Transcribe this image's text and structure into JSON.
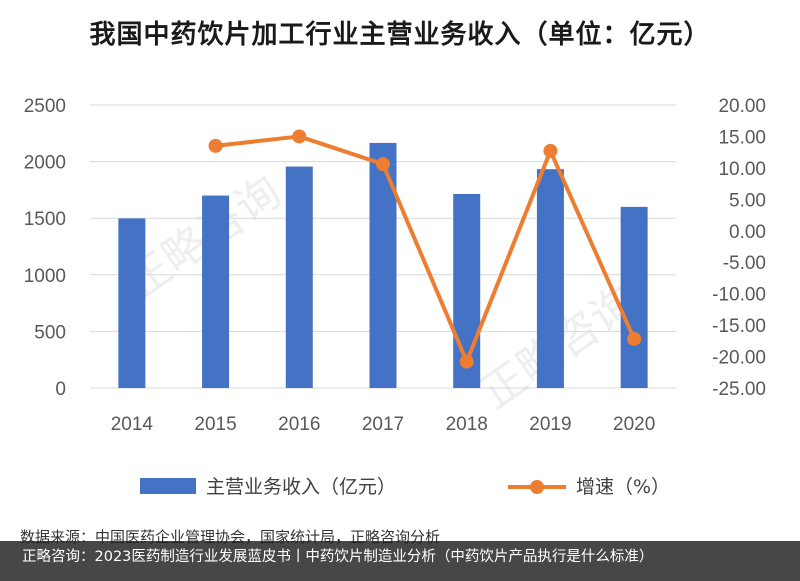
{
  "chart_data": {
    "type": "bar+line",
    "title": "我国中药饮片加工行业主营业务收入（单位：亿元）",
    "categories": [
      "2014",
      "2015",
      "2016",
      "2017",
      "2018",
      "2019",
      "2020"
    ],
    "series": [
      {
        "name": "主营业务收入（亿元）",
        "type": "bar",
        "axis": "left",
        "color": "#4472C4",
        "values": [
          1498,
          1700,
          1956,
          2165,
          1714,
          1933,
          1600
        ]
      },
      {
        "name": "增速（%）",
        "type": "line",
        "axis": "right",
        "color": "#ED7D31",
        "values": [
          null,
          13.5,
          15.0,
          10.6,
          -20.8,
          12.7,
          -17.2
        ]
      }
    ],
    "y_left": {
      "range": [
        0,
        2500
      ],
      "ticks": [
        "2500",
        "2000",
        "1500",
        "1000",
        "500",
        "0"
      ]
    },
    "y_right": {
      "range": [
        -25,
        20
      ],
      "ticks": [
        "20.00",
        "15.00",
        "10.00",
        "5.00",
        "0.00",
        "-5.00",
        "-10.00",
        "-15.00",
        "-20.00",
        "-25.00"
      ]
    },
    "grid": true,
    "legend": "bottom"
  },
  "watermark": "正略咨询",
  "source": "数据来源：中国医药企业管理协会，国家统计局，正略咨询分析",
  "footer": "正略咨询：2023医药制造行业发展蓝皮书丨中药饮片制造业分析（中药饮片产品执行是什么标准）"
}
